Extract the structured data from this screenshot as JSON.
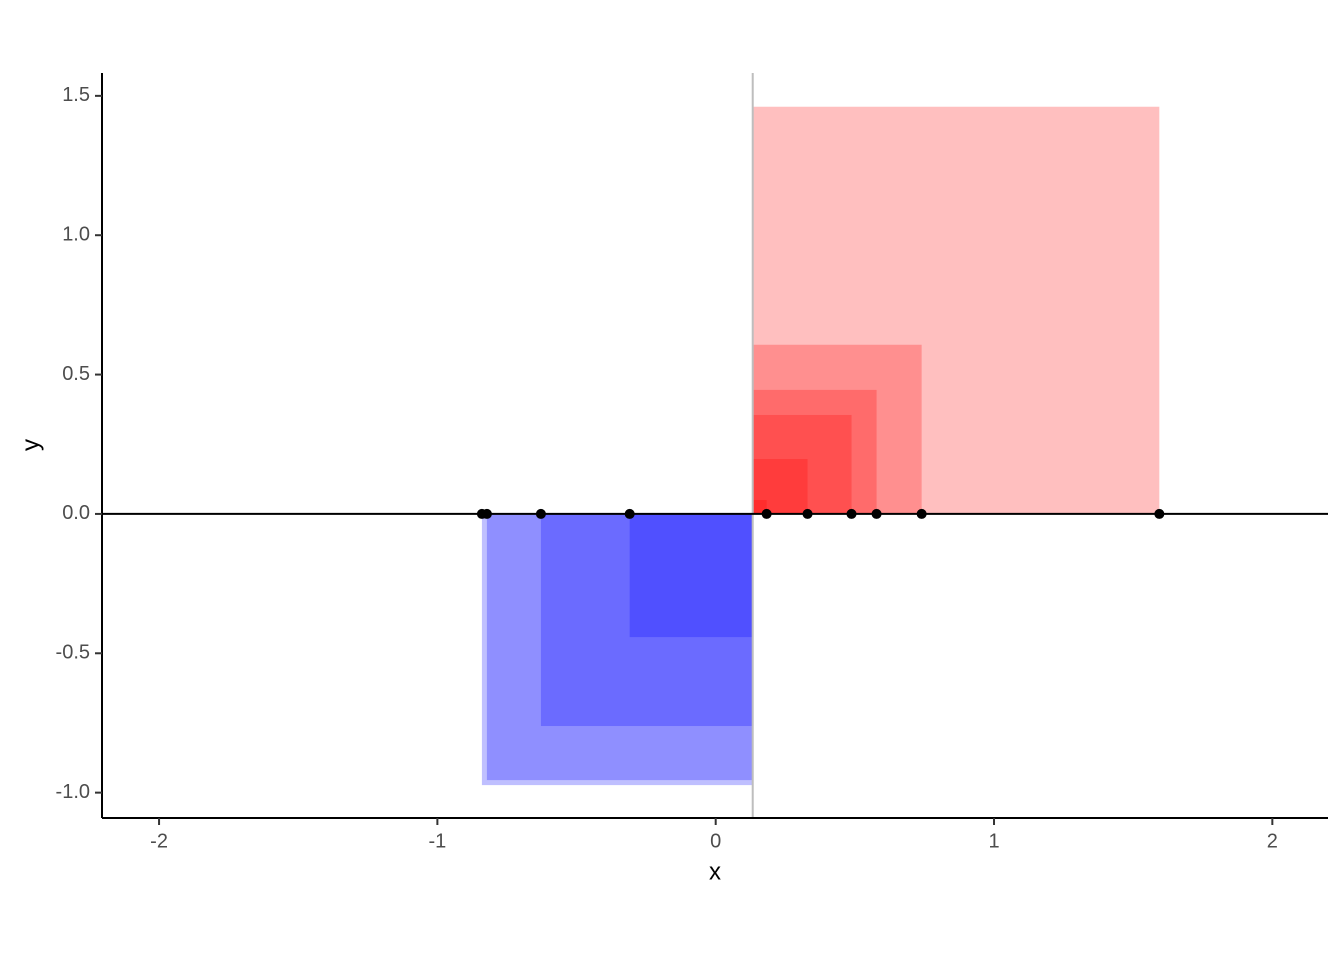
{
  "chart_data": {
    "type": "scatter",
    "x_label": "x",
    "y_label": "y",
    "x": [
      -0.84,
      -0.822,
      -0.628,
      -0.309,
      0.183,
      0.33,
      0.488,
      0.578,
      0.74,
      1.594
    ],
    "y": [
      0,
      0,
      0,
      0,
      0,
      0,
      0,
      0,
      0,
      0
    ],
    "mean": 0.133,
    "point_color": "#000000",
    "positive_color": "#ff0000",
    "negative_color": "#0000ff",
    "square_opacity": 0.25,
    "mean_line_color": "#bebebe",
    "xlim": [
      -2.205,
      2.2
    ],
    "ylim": [
      -1.091,
      1.582
    ],
    "xticks": [
      -2,
      -1,
      0,
      1,
      2
    ],
    "yticks": [
      {
        "value": -1,
        "label": "-1.0"
      },
      -0.5,
      {
        "value": 0,
        "label": "0.0"
      },
      0.5,
      {
        "value": 1,
        "label": "1.0"
      },
      1.5
    ]
  }
}
